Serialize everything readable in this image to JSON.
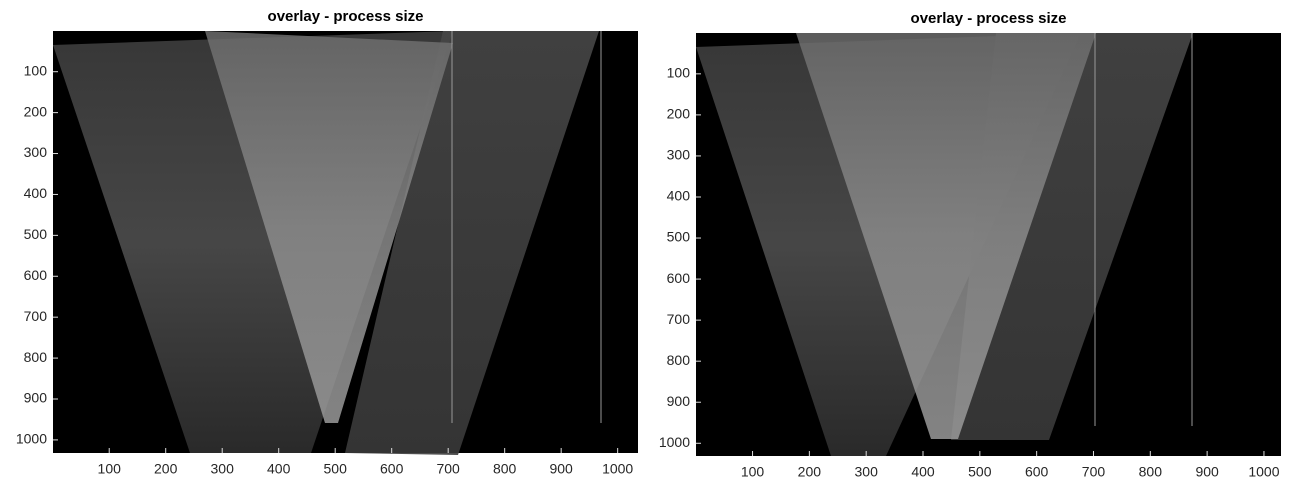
{
  "chart_data": [
    {
      "type": "image",
      "title": "overlay - process size",
      "xlim": [
        0.5,
        1036
      ],
      "ylim": [
        0.5,
        1032
      ],
      "y_reverse": true,
      "xticks": [
        100,
        200,
        300,
        400,
        500,
        600,
        700,
        800,
        900,
        1000
      ],
      "yticks": [
        100,
        200,
        300,
        400,
        500,
        600,
        700,
        800,
        900,
        1000
      ]
    },
    {
      "type": "image",
      "title": "overlay - process size",
      "xlim": [
        0.5,
        1030
      ],
      "ylim": [
        0.5,
        1031
      ],
      "y_reverse": true,
      "xticks": [
        100,
        200,
        300,
        400,
        500,
        600,
        700,
        800,
        900,
        1000
      ],
      "yticks": [
        100,
        200,
        300,
        400,
        500,
        600,
        700,
        800,
        900,
        1000
      ]
    }
  ]
}
